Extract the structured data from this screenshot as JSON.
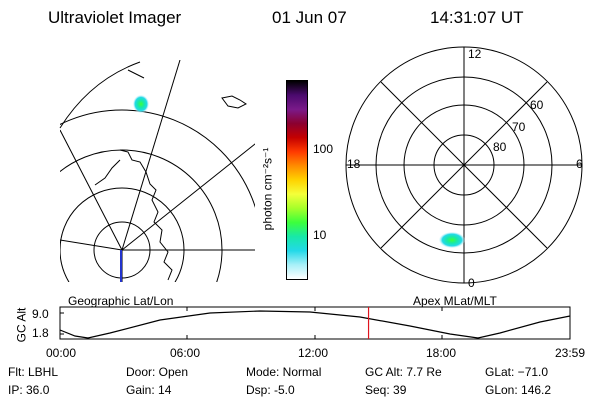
{
  "header": {
    "title": "Ultraviolet Imager",
    "date": "01 Jun 07",
    "time": "14:31:07 UT"
  },
  "geo_panel": {
    "label": "Geographic Lat/Lon"
  },
  "colorbar": {
    "unit_label": "photon cm⁻²s⁻¹",
    "ticks": [
      "100",
      "10"
    ],
    "colors": [
      "#000000",
      "#4b0a6e",
      "#7a1a8a",
      "#8b0030",
      "#c40000",
      "#ff3a00",
      "#ff8c00",
      "#ffd200",
      "#f4ff3a",
      "#a6ff2a",
      "#3cff3c",
      "#18e8a8",
      "#23d9e8",
      "#a8f0f8",
      "#ffffff"
    ]
  },
  "polar_panel": {
    "label": "Apex MLat/MLT",
    "mlt_labels": {
      "top": "12",
      "left": "18",
      "right": "6",
      "bottom": "0"
    },
    "lat_labels": [
      "60",
      "70",
      "80"
    ]
  },
  "timeline": {
    "y_axis_label": "GC Alt",
    "y_ticks": [
      "9.0",
      "1.8"
    ],
    "x_ticks": [
      "00:00",
      "06:00",
      "12:00",
      "18:00",
      "23:59"
    ],
    "current_time_hours": 14.52,
    "marker_color": "#e0141e"
  },
  "info": {
    "filt": "Flt: LBHL",
    "ip": "IP: 36.0",
    "door": "Door: Open",
    "gain": "Gain: 14",
    "mode": "Mode: Normal",
    "dsp": "Dsp:     -5.0",
    "gcalt": "GC Alt: 7.7 Re",
    "seq": "Seq: 39",
    "glat": "GLat: −71.0",
    "glon": "GLon: 146.2"
  }
}
